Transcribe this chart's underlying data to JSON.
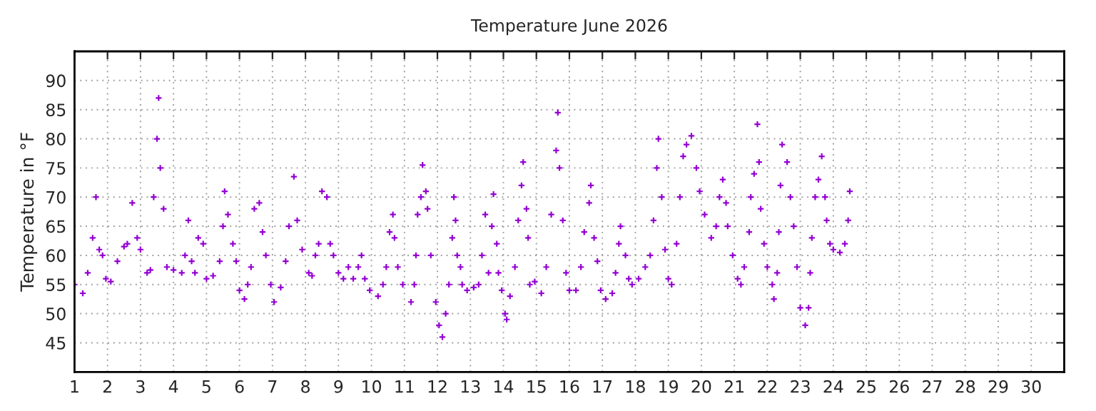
{
  "chart_data": {
    "type": "scatter",
    "title": "Temperature June 2026",
    "ylabel": "Temperature in °F",
    "xlim": [
      1,
      31
    ],
    "ylim": [
      40,
      95
    ],
    "xticks": [
      1,
      2,
      3,
      4,
      5,
      6,
      7,
      8,
      9,
      10,
      11,
      12,
      13,
      14,
      15,
      16,
      17,
      18,
      19,
      20,
      21,
      22,
      23,
      24,
      25,
      26,
      27,
      28,
      29,
      30
    ],
    "yticks": [
      45,
      50,
      55,
      60,
      65,
      70,
      75,
      80,
      85,
      90
    ],
    "grid": true,
    "marker": "cross",
    "series": [
      {
        "color": "#9400d3",
        "x": [
          1.0,
          1.25,
          1.4,
          1.55,
          1.65,
          1.75,
          1.85,
          1.95,
          2.1,
          2.3,
          2.5,
          2.6,
          2.75,
          2.9,
          3.0,
          3.2,
          3.3,
          3.4,
          3.5,
          3.55,
          3.6,
          3.7,
          3.8,
          4.0,
          4.25,
          4.35,
          4.45,
          4.55,
          4.65,
          4.75,
          4.9,
          5.0,
          5.2,
          5.4,
          5.5,
          5.55,
          5.65,
          5.8,
          5.9,
          6.0,
          6.15,
          6.25,
          6.35,
          6.45,
          6.6,
          6.7,
          6.8,
          6.95,
          7.05,
          7.25,
          7.4,
          7.5,
          7.65,
          7.75,
          7.9,
          8.1,
          8.2,
          8.3,
          8.4,
          8.5,
          8.65,
          8.75,
          8.85,
          9.0,
          9.15,
          9.3,
          9.45,
          9.6,
          9.7,
          9.8,
          9.95,
          10.2,
          10.35,
          10.45,
          10.55,
          10.65,
          10.7,
          10.8,
          10.95,
          11.2,
          11.3,
          11.35,
          11.4,
          11.5,
          11.55,
          11.65,
          11.7,
          11.8,
          11.95,
          12.05,
          12.15,
          12.25,
          12.35,
          12.45,
          12.5,
          12.55,
          12.6,
          12.7,
          12.75,
          12.9,
          13.1,
          13.25,
          13.35,
          13.45,
          13.55,
          13.65,
          13.7,
          13.8,
          13.85,
          13.95,
          14.05,
          14.1,
          14.2,
          14.35,
          14.45,
          14.55,
          14.6,
          14.7,
          14.75,
          14.8,
          14.95,
          15.15,
          15.3,
          15.45,
          15.6,
          15.65,
          15.7,
          15.8,
          15.9,
          16.0,
          16.2,
          16.35,
          16.45,
          16.6,
          16.65,
          16.75,
          16.85,
          16.95,
          17.1,
          17.3,
          17.4,
          17.5,
          17.55,
          17.7,
          17.8,
          17.9,
          18.1,
          18.3,
          18.45,
          18.55,
          18.65,
          18.7,
          18.8,
          18.9,
          19.0,
          19.1,
          19.25,
          19.35,
          19.45,
          19.55,
          19.7,
          19.85,
          19.95,
          20.1,
          20.3,
          20.45,
          20.55,
          20.65,
          20.75,
          20.8,
          20.95,
          21.1,
          21.2,
          21.3,
          21.45,
          21.5,
          21.6,
          21.7,
          21.75,
          21.8,
          21.9,
          22.0,
          22.15,
          22.2,
          22.3,
          22.35,
          22.4,
          22.45,
          22.6,
          22.7,
          22.8,
          22.9,
          23.0,
          23.15,
          23.25,
          23.3,
          23.35,
          23.45,
          23.55,
          23.65,
          23.75,
          23.8,
          23.9,
          24.0,
          24.2,
          24.35,
          24.45,
          24.5
        ],
        "values": [
          55,
          53.5,
          57,
          63,
          70,
          61,
          60,
          56,
          55.5,
          59,
          61.5,
          62,
          69,
          63,
          61,
          57,
          57.5,
          70,
          80,
          87,
          75,
          68,
          58,
          57.5,
          57,
          60,
          66,
          59,
          57,
          63,
          62,
          56,
          56.5,
          59,
          65,
          71,
          67,
          62,
          59,
          54,
          52.5,
          55,
          58,
          68,
          69,
          64,
          60,
          55,
          52,
          54.5,
          59,
          65,
          73.5,
          66,
          61,
          57,
          56.5,
          60,
          62,
          71,
          70,
          62,
          60,
          57,
          56,
          58,
          56,
          58,
          60,
          56,
          54,
          53,
          55,
          58,
          64,
          67,
          63,
          58,
          55,
          52,
          55,
          60,
          67,
          70,
          75.5,
          71,
          68,
          60,
          52,
          48,
          46,
          50,
          55,
          63,
          70,
          66,
          60,
          58,
          55,
          54,
          54.5,
          55,
          60,
          67,
          57,
          65,
          70.5,
          62,
          57,
          54,
          50,
          49,
          53,
          58,
          66,
          72,
          76,
          68,
          63,
          55,
          55.5,
          53.5,
          58,
          67,
          78,
          84.5,
          75,
          66,
          57,
          54,
          54,
          58,
          64,
          69,
          72,
          63,
          59,
          54,
          52.5,
          53.5,
          57,
          62,
          65,
          60,
          56,
          55,
          56,
          58,
          60,
          66,
          75,
          80,
          70,
          61,
          56,
          55,
          62,
          70,
          77,
          79,
          80.5,
          75,
          71,
          67,
          63,
          65,
          70,
          73,
          69,
          65,
          60,
          56,
          55,
          58,
          64,
          70,
          74,
          82.5,
          76,
          68,
          62,
          58,
          55,
          52.5,
          57,
          64,
          72,
          79,
          76,
          70,
          65,
          58,
          51,
          48,
          51,
          57,
          63,
          70,
          73,
          77,
          70,
          66,
          62,
          61,
          60.5,
          62,
          66,
          71
        ]
      }
    ]
  }
}
